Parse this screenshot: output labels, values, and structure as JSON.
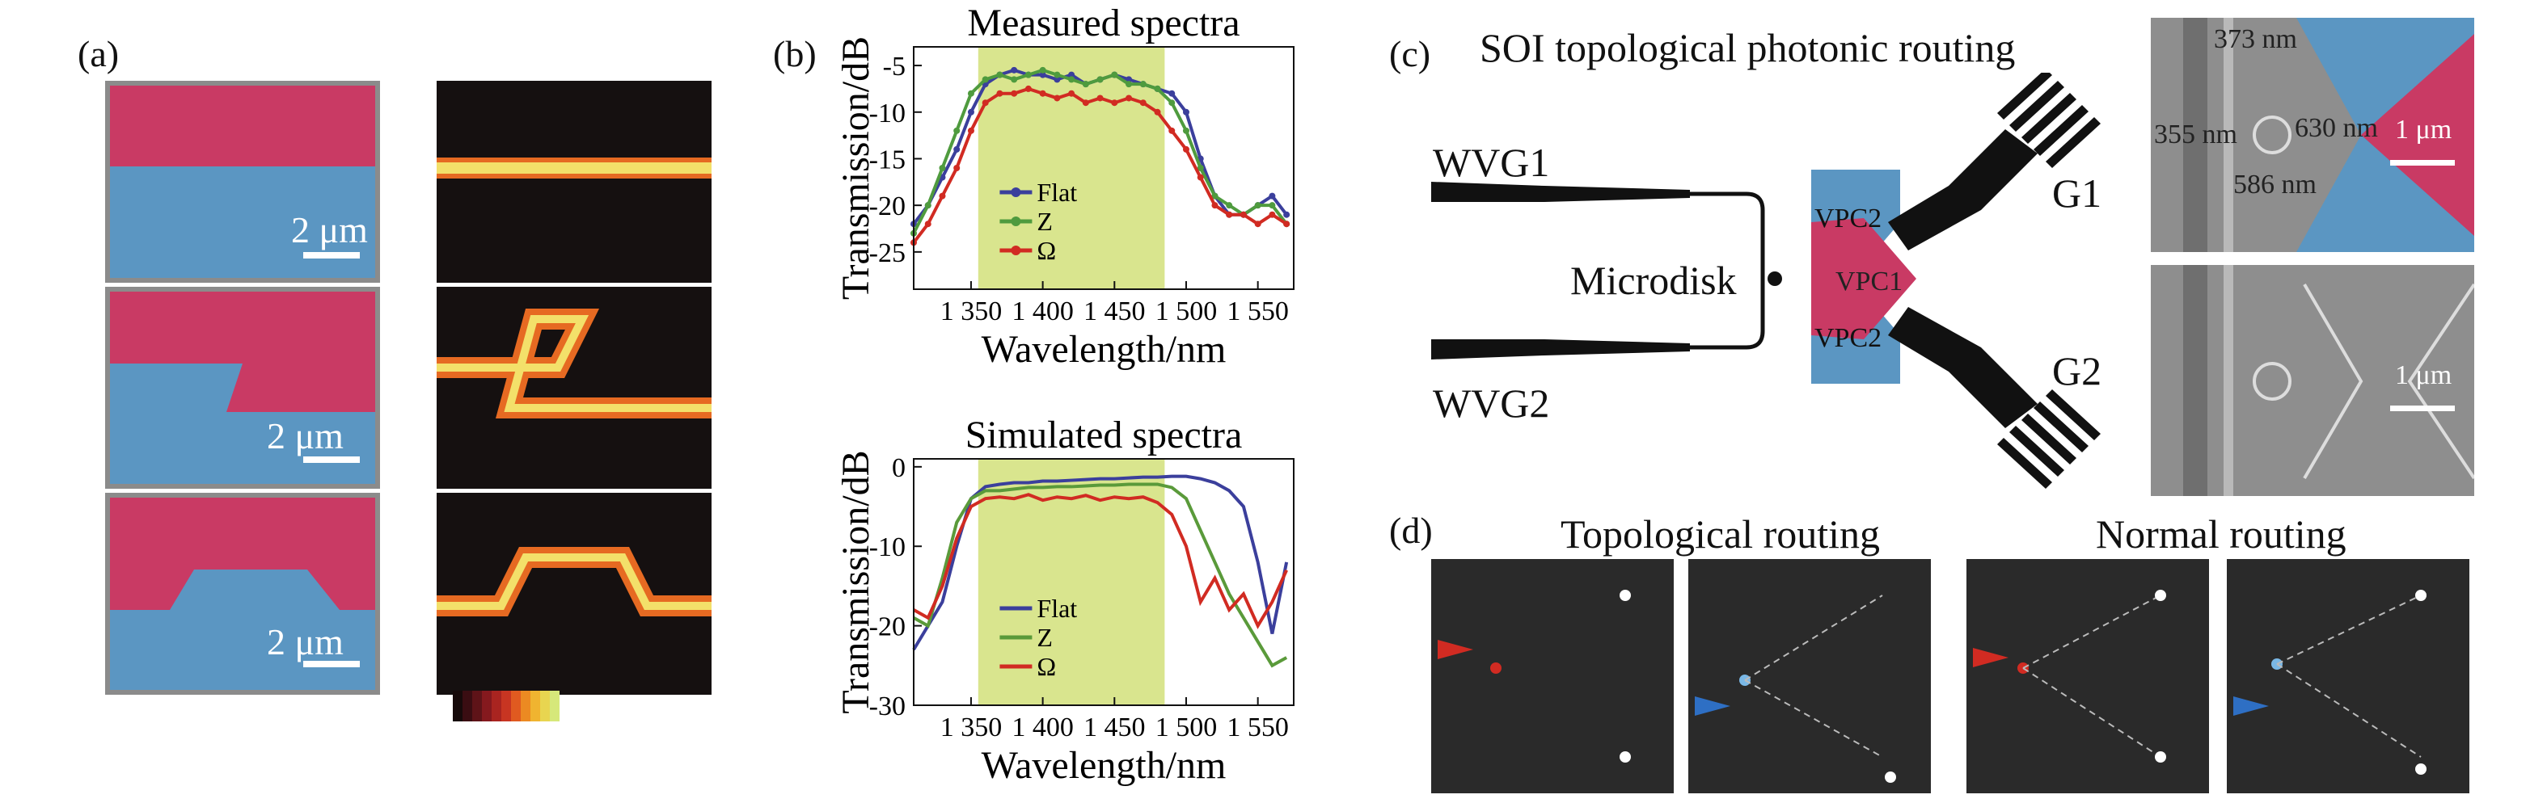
{
  "panel_labels": {
    "a": "(a)",
    "b": "(b)",
    "c": "(c)",
    "d": "(d)"
  },
  "panel_a": {
    "scale_bar_label": "2 μm",
    "colors": {
      "top_region": "#c93a64",
      "bottom_region": "#5b96c2"
    },
    "colorbar": [
      "#160a0a",
      "#3a0d12",
      "#5e1318",
      "#85191e",
      "#a92420",
      "#c83522",
      "#e05a20",
      "#ec8a22",
      "#f0b430",
      "#e8d550",
      "#d6e87a"
    ]
  },
  "panel_b": {
    "legend": [
      "Flat",
      "Z",
      "Ω"
    ],
    "tick_labels_x": [
      "1 350",
      "1 400",
      "1 450",
      "1 500",
      "1 550"
    ],
    "chart_data": [
      {
        "type": "line",
        "title": "Measured spectra",
        "xlabel": "Wavelength/nm",
        "ylabel": "Transmission/dB",
        "xlim": [
          1310,
          1575
        ],
        "ylim": [
          -29,
          -3
        ],
        "yticks": [
          -5,
          -10,
          -15,
          -20,
          -25
        ],
        "highlight_band": [
          1355,
          1485
        ],
        "x": [
          1310,
          1320,
          1330,
          1340,
          1350,
          1360,
          1370,
          1380,
          1390,
          1400,
          1410,
          1420,
          1430,
          1440,
          1450,
          1460,
          1470,
          1480,
          1490,
          1500,
          1510,
          1520,
          1530,
          1540,
          1550,
          1560,
          1570
        ],
        "series": [
          {
            "name": "Flat",
            "color": "#3b3f9c",
            "values": [
              -22,
              -20,
              -17,
              -14,
              -10,
              -7,
              -6,
              -5.5,
              -6,
              -6,
              -6.5,
              -6,
              -7,
              -6.5,
              -6,
              -6.5,
              -7,
              -7.5,
              -8,
              -10,
              -15,
              -19,
              -21,
              -21,
              -20,
              -19,
              -21
            ]
          },
          {
            "name": "Z",
            "color": "#4f9b3e",
            "values": [
              -23,
              -20,
              -16,
              -12,
              -8,
              -6.5,
              -6,
              -6.5,
              -6,
              -5.5,
              -6,
              -6.5,
              -7,
              -6.5,
              -6,
              -7,
              -7,
              -7.5,
              -9,
              -12,
              -16,
              -19,
              -20,
              -21,
              -20,
              -20,
              -22
            ]
          },
          {
            "name": "Ω",
            "color": "#d12b22",
            "values": [
              -24,
              -22,
              -19,
              -16,
              -12,
              -9,
              -8,
              -8,
              -7.5,
              -8,
              -8.5,
              -8,
              -9,
              -8.5,
              -9,
              -8.5,
              -9,
              -10,
              -12,
              -14,
              -17,
              -20,
              -21,
              -21,
              -22,
              -21,
              -22
            ]
          }
        ]
      },
      {
        "type": "line",
        "title": "Simulated spectra",
        "xlabel": "Wavelength/nm",
        "ylabel": "Transmission/dB",
        "xlim": [
          1310,
          1575
        ],
        "ylim": [
          -30,
          1
        ],
        "yticks": [
          0,
          -10,
          -20,
          -30
        ],
        "highlight_band": [
          1355,
          1485
        ],
        "x": [
          1310,
          1320,
          1330,
          1340,
          1350,
          1360,
          1370,
          1380,
          1390,
          1400,
          1410,
          1420,
          1430,
          1440,
          1450,
          1460,
          1470,
          1480,
          1490,
          1500,
          1510,
          1520,
          1530,
          1540,
          1550,
          1560,
          1570
        ],
        "series": [
          {
            "name": "Flat",
            "color": "#3b3f9c",
            "values": [
              -23,
              -20,
              -17,
              -10,
              -4,
              -2.5,
              -2.2,
              -2,
              -2,
              -1.8,
              -1.8,
              -1.7,
              -1.6,
              -1.5,
              -1.5,
              -1.4,
              -1.3,
              -1.3,
              -1.2,
              -1.2,
              -1.5,
              -2,
              -3,
              -5,
              -12,
              -21,
              -12
            ]
          },
          {
            "name": "Z",
            "color": "#5a9a3a",
            "values": [
              -19,
              -20,
              -14,
              -7,
              -4,
              -3,
              -3,
              -2.8,
              -2.6,
              -2.6,
              -2.5,
              -2.5,
              -2.4,
              -2.3,
              -2.3,
              -2.2,
              -2.2,
              -2.2,
              -2.6,
              -4,
              -8,
              -12,
              -16,
              -19,
              -22,
              -25,
              -24
            ]
          },
          {
            "name": "Ω",
            "color": "#d12b22",
            "values": [
              -18,
              -19,
              -15,
              -9,
              -5,
              -4,
              -3.8,
              -4,
              -3.5,
              -4.2,
              -3.8,
              -4,
              -3.6,
              -4.2,
              -3.8,
              -4,
              -3.8,
              -4.5,
              -6,
              -10,
              -17,
              -14,
              -18,
              -16,
              -20,
              -17,
              -13
            ]
          }
        ]
      }
    ]
  },
  "panel_c": {
    "title": "SOI topological photonic routing",
    "labels": {
      "wvg1": "WVG1",
      "wvg2": "WVG2",
      "microdisk": "Microdisk",
      "vpc1": "VPC1",
      "vpc2_top": "VPC2",
      "vpc2_bottom": "VPC2",
      "g1": "G1",
      "g2": "G2"
    },
    "sem_top": {
      "dims": [
        "373 nm",
        "355 nm",
        "630 nm",
        "586 nm"
      ],
      "scale_bar": "1 μm"
    },
    "sem_bottom": {
      "scale_bar": "1 μm"
    },
    "colors": {
      "vpc1": "#c93a64",
      "vpc2": "#5b96c2"
    }
  },
  "panel_d": {
    "titles": {
      "topological": "Topological routing",
      "normal": "Normal routing"
    },
    "colors": {
      "red_arrow": "#d12b22",
      "blue_arrow": "#2e6fc4"
    }
  }
}
